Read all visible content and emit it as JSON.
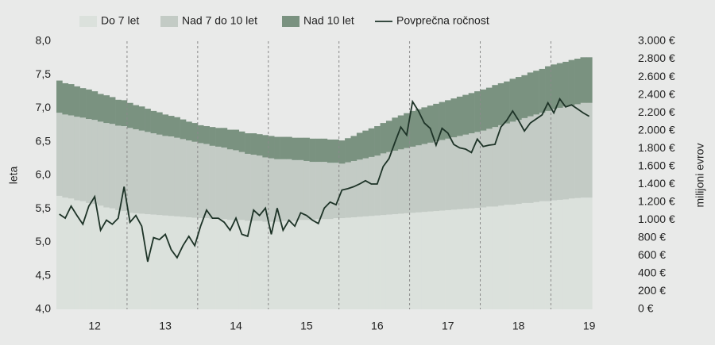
{
  "chart_data": {
    "type": "combo",
    "categories": [
      null,
      null,
      null,
      null,
      null,
      null,
      "12",
      null,
      null,
      null,
      null,
      null,
      null,
      null,
      null,
      null,
      null,
      null,
      "13",
      null,
      null,
      null,
      null,
      null,
      null,
      null,
      null,
      null,
      null,
      null,
      "14",
      null,
      null,
      null,
      null,
      null,
      null,
      null,
      null,
      null,
      null,
      null,
      "15",
      null,
      null,
      null,
      null,
      null,
      null,
      null,
      null,
      null,
      null,
      null,
      "16",
      null,
      null,
      null,
      null,
      null,
      null,
      null,
      null,
      null,
      null,
      null,
      "17",
      null,
      null,
      null,
      null,
      null,
      null,
      null,
      null,
      null,
      null,
      null,
      "18",
      null,
      null,
      null,
      null,
      null,
      null,
      null,
      null,
      null,
      null,
      null,
      "19"
    ],
    "series": [
      {
        "name": "Do 7 let",
        "type": "area",
        "axis": "y2",
        "color": "#dbe1dc",
        "values": [
          1270,
          1250,
          1240,
          1220,
          1210,
          1190,
          1180,
          1160,
          1140,
          1130,
          1110,
          1100,
          1080,
          1075,
          1070,
          1065,
          1060,
          1055,
          1050,
          1045,
          1040,
          1035,
          1030,
          1025,
          1020,
          1020,
          1010,
          1010,
          1010,
          1000,
          1000,
          1000,
          990,
          990,
          990,
          980,
          980,
          980,
          990,
          990,
          990,
          1000,
          1000,
          1000,
          1010,
          1010,
          1010,
          1020,
          1020,
          1025,
          1030,
          1035,
          1040,
          1045,
          1050,
          1055,
          1060,
          1065,
          1070,
          1075,
          1080,
          1085,
          1090,
          1095,
          1100,
          1105,
          1110,
          1115,
          1120,
          1125,
          1130,
          1135,
          1140,
          1150,
          1150,
          1160,
          1170,
          1170,
          1180,
          1190,
          1190,
          1200,
          1210,
          1210,
          1220,
          1225,
          1230,
          1240,
          1245,
          1250,
          1250
        ]
      },
      {
        "name": "Nad 7 do 10 let",
        "type": "area",
        "axis": "y2",
        "color": "#c3cbc5",
        "values": [
          930,
          930,
          930,
          935,
          935,
          940,
          940,
          940,
          945,
          945,
          945,
          950,
          950,
          940,
          930,
          920,
          910,
          900,
          890,
          890,
          880,
          870,
          860,
          850,
          840,
          830,
          820,
          810,
          800,
          790,
          780,
          760,
          750,
          740,
          730,
          720,
          710,
          700,
          690,
          690,
          680,
          670,
          660,
          650,
          640,
          640,
          630,
          620,
          610,
          620,
          630,
          640,
          650,
          660,
          670,
          690,
          700,
          710,
          720,
          730,
          740,
          750,
          760,
          770,
          780,
          790,
          800,
          810,
          820,
          830,
          840,
          850,
          860,
          870,
          890,
          900,
          910,
          930,
          940,
          950,
          970,
          980,
          990,
          1010,
          1020,
          1030,
          1040,
          1040,
          1050,
          1060,
          1060
        ]
      },
      {
        "name": "Nad 10 let",
        "type": "area",
        "axis": "y2",
        "color": "#7a9280",
        "values": [
          360,
          350,
          350,
          340,
          330,
          330,
          320,
          310,
          310,
          300,
          290,
          290,
          280,
          270,
          270,
          260,
          250,
          250,
          240,
          230,
          230,
          220,
          210,
          210,
          200,
          200,
          210,
          210,
          220,
          220,
          230,
          230,
          230,
          240,
          240,
          250,
          250,
          250,
          250,
          250,
          250,
          250,
          260,
          260,
          260,
          260,
          260,
          260,
          260,
          270,
          280,
          300,
          310,
          320,
          330,
          340,
          350,
          370,
          380,
          390,
          400,
          405,
          410,
          415,
          420,
          425,
          430,
          435,
          440,
          445,
          450,
          455,
          460,
          460,
          470,
          470,
          470,
          480,
          480,
          480,
          490,
          490,
          490,
          500,
          500,
          500,
          500,
          510,
          510,
          510,
          510
        ]
      },
      {
        "name": "Povprečna ročnost",
        "type": "line",
        "axis": "y",
        "color": "#1d3327",
        "values": [
          5.42,
          5.36,
          5.54,
          5.4,
          5.27,
          5.54,
          5.68,
          5.18,
          5.33,
          5.27,
          5.36,
          5.83,
          5.3,
          5.4,
          5.24,
          4.71,
          5.07,
          5.04,
          5.12,
          4.89,
          4.77,
          4.95,
          5.09,
          4.95,
          5.24,
          5.48,
          5.36,
          5.36,
          5.3,
          5.18,
          5.36,
          5.12,
          5.09,
          5.48,
          5.4,
          5.51,
          5.12,
          5.51,
          5.18,
          5.33,
          5.24,
          5.44,
          5.4,
          5.33,
          5.28,
          5.51,
          5.6,
          5.56,
          5.78,
          5.8,
          5.83,
          5.87,
          5.92,
          5.87,
          5.87,
          6.13,
          6.25,
          6.49,
          6.72,
          6.6,
          7.1,
          6.96,
          6.78,
          6.7,
          6.45,
          6.7,
          6.63,
          6.46,
          6.41,
          6.39,
          6.34,
          6.54,
          6.43,
          6.45,
          6.46,
          6.72,
          6.82,
          6.96,
          6.82,
          6.66,
          6.78,
          6.84,
          6.9,
          7.08,
          6.93,
          7.14,
          7.02,
          7.05,
          6.99,
          6.93,
          6.88
        ]
      }
    ],
    "y_label": "leta",
    "y2_label": "milijoni evrov",
    "ylim": [
      4,
      8
    ],
    "yticks": [
      {
        "value": 4,
        "label": "4,0"
      },
      {
        "value": 4.5,
        "label": "4,5"
      },
      {
        "value": 5,
        "label": "5,0"
      },
      {
        "value": 5.5,
        "label": "5,5"
      },
      {
        "value": 6,
        "label": "6,0"
      },
      {
        "value": 6.5,
        "label": "6,5"
      },
      {
        "value": 7,
        "label": "7,0"
      },
      {
        "value": 7.5,
        "label": "7,5"
      },
      {
        "value": 8,
        "label": "8,0"
      }
    ],
    "y2lim": [
      0,
      3000
    ],
    "y2ticks": [
      {
        "value": 0,
        "label": "0 €"
      },
      {
        "value": 200,
        "label": "200 €"
      },
      {
        "value": 400,
        "label": "400 €"
      },
      {
        "value": 600,
        "label": "600 €"
      },
      {
        "value": 800,
        "label": "800 €"
      },
      {
        "value": 1000,
        "label": "1.000 €"
      },
      {
        "value": 1200,
        "label": "1.200 €"
      },
      {
        "value": 1400,
        "label": "1.400 €"
      },
      {
        "value": 1600,
        "label": "1.600 €"
      },
      {
        "value": 1800,
        "label": "1.800 €"
      },
      {
        "value": 2000,
        "label": "2.000 €"
      },
      {
        "value": 2200,
        "label": "2.200 €"
      },
      {
        "value": 2400,
        "label": "2.400 €"
      },
      {
        "value": 2600,
        "label": "2.600 €"
      },
      {
        "value": 2800,
        "label": "2.800 €"
      },
      {
        "value": 3000,
        "label": "3.000 €"
      }
    ],
    "legend": "top"
  }
}
